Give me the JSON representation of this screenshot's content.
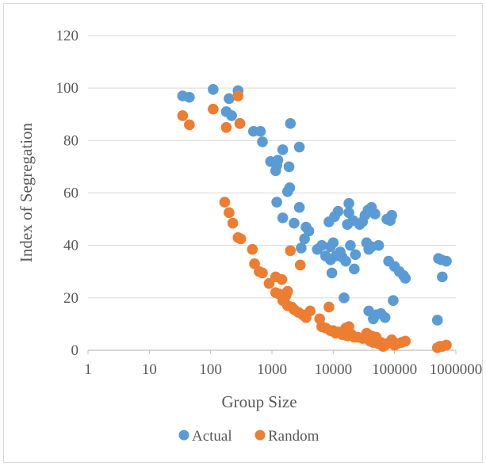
{
  "chart_data": {
    "type": "scatter",
    "title": "",
    "xlabel": "Group Size",
    "ylabel": "Index of Segregation",
    "xscale": "log",
    "xlim": [
      1,
      1000000
    ],
    "ylim": [
      0,
      120
    ],
    "x_tick_labels": [
      "1",
      "10",
      "100",
      "1000",
      "10000",
      "100000",
      "1000000"
    ],
    "y_tick_labels": [
      "0",
      "20",
      "40",
      "60",
      "80",
      "100",
      "120"
    ],
    "grid": "horizontal",
    "legend_position": "bottom",
    "series": [
      {
        "name": "Actual",
        "color": "#5B9BD5",
        "points": [
          [
            35,
            97
          ],
          [
            45,
            96.5
          ],
          [
            110,
            99.5
          ],
          [
            180,
            91
          ],
          [
            200,
            96
          ],
          [
            220,
            89.5
          ],
          [
            280,
            99
          ],
          [
            300,
            86.5
          ],
          [
            500,
            83.5
          ],
          [
            650,
            83.5
          ],
          [
            700,
            79.5
          ],
          [
            950,
            72
          ],
          [
            1150,
            68.5
          ],
          [
            1200,
            70.5
          ],
          [
            1250,
            72.5
          ],
          [
            1500,
            76.5
          ],
          [
            1900,
            70
          ],
          [
            2000,
            86.5
          ],
          [
            1200,
            56.5
          ],
          [
            1500,
            50.5
          ],
          [
            1800,
            60.5
          ],
          [
            1950,
            62
          ],
          [
            2300,
            48.5
          ],
          [
            2800,
            77.5
          ],
          [
            2800,
            54.5
          ],
          [
            3000,
            39
          ],
          [
            3400,
            42.5
          ],
          [
            3600,
            47
          ],
          [
            4000,
            45.5
          ],
          [
            6500,
            40
          ],
          [
            5500,
            38.5
          ],
          [
            7500,
            36
          ],
          [
            8500,
            49
          ],
          [
            9000,
            34.5
          ],
          [
            9000,
            39.5
          ],
          [
            9500,
            29.5
          ],
          [
            10000,
            41
          ],
          [
            10500,
            51
          ],
          [
            11000,
            36
          ],
          [
            12000,
            53
          ],
          [
            13000,
            37.5
          ],
          [
            14000,
            35.5
          ],
          [
            15000,
            20
          ],
          [
            16000,
            34
          ],
          [
            17000,
            48
          ],
          [
            18000,
            56
          ],
          [
            18000,
            52.5
          ],
          [
            19000,
            40
          ],
          [
            21000,
            49.5
          ],
          [
            22000,
            31
          ],
          [
            23000,
            36.5
          ],
          [
            27000,
            48
          ],
          [
            30000,
            49
          ],
          [
            33000,
            51.5
          ],
          [
            35000,
            41
          ],
          [
            37000,
            53.5
          ],
          [
            38000,
            38.5
          ],
          [
            38000,
            15
          ],
          [
            42000,
            54.5
          ],
          [
            42000,
            39.5
          ],
          [
            45000,
            12
          ],
          [
            48000,
            52
          ],
          [
            50000,
            13.5
          ],
          [
            55000,
            40
          ],
          [
            60000,
            14
          ],
          [
            70000,
            12.5
          ],
          [
            75000,
            50
          ],
          [
            80000,
            34
          ],
          [
            85000,
            49.5
          ],
          [
            90000,
            51.5
          ],
          [
            95000,
            19
          ],
          [
            100000,
            32
          ],
          [
            120000,
            30
          ],
          [
            140000,
            28.5
          ],
          [
            150000,
            27.5
          ],
          [
            500000,
            11.5
          ],
          [
            520000,
            35
          ],
          [
            580000,
            34.5
          ],
          [
            600000,
            28
          ],
          [
            700000,
            34
          ]
        ]
      },
      {
        "name": "Random",
        "color": "#ED7D31",
        "points": [
          [
            35,
            89.5
          ],
          [
            45,
            86
          ],
          [
            110,
            92
          ],
          [
            180,
            85
          ],
          [
            280,
            97
          ],
          [
            300,
            86.5
          ],
          [
            170,
            56.5
          ],
          [
            200,
            52.5
          ],
          [
            230,
            48.5
          ],
          [
            280,
            43
          ],
          [
            310,
            42.5
          ],
          [
            480,
            38.5
          ],
          [
            520,
            33
          ],
          [
            620,
            30
          ],
          [
            700,
            29.5
          ],
          [
            900,
            25.5
          ],
          [
            1150,
            28
          ],
          [
            1150,
            22
          ],
          [
            1300,
            21.5
          ],
          [
            1450,
            27
          ],
          [
            1500,
            19
          ],
          [
            1600,
            20
          ],
          [
            1700,
            21
          ],
          [
            1800,
            22.5
          ],
          [
            1800,
            17
          ],
          [
            2000,
            38
          ],
          [
            2100,
            16.5
          ],
          [
            2300,
            15.5
          ],
          [
            2700,
            14.5
          ],
          [
            2900,
            32.5
          ],
          [
            3200,
            13.5
          ],
          [
            3600,
            12.5
          ],
          [
            4200,
            15
          ],
          [
            6000,
            12
          ],
          [
            6500,
            9
          ],
          [
            7500,
            8.5
          ],
          [
            8500,
            16.5
          ],
          [
            9000,
            7.5
          ],
          [
            10000,
            7.5
          ],
          [
            11000,
            6.5
          ],
          [
            12000,
            7
          ],
          [
            14000,
            6
          ],
          [
            16000,
            8.5
          ],
          [
            17000,
            5.5
          ],
          [
            18000,
            9
          ],
          [
            20000,
            6
          ],
          [
            22000,
            5
          ],
          [
            25000,
            5
          ],
          [
            30000,
            4.5
          ],
          [
            35000,
            6.5
          ],
          [
            38000,
            4
          ],
          [
            40000,
            3.5
          ],
          [
            42000,
            5.5
          ],
          [
            45000,
            3
          ],
          [
            50000,
            5
          ],
          [
            55000,
            2.5
          ],
          [
            60000,
            3
          ],
          [
            65000,
            1.5
          ],
          [
            70000,
            2
          ],
          [
            75000,
            2.5
          ],
          [
            85000,
            3
          ],
          [
            90000,
            4
          ],
          [
            100000,
            2
          ],
          [
            110000,
            2.5
          ],
          [
            130000,
            3
          ],
          [
            150000,
            3.5
          ],
          [
            500000,
            1
          ],
          [
            550000,
            1.5
          ],
          [
            600000,
            1.5
          ],
          [
            700000,
            2
          ]
        ]
      }
    ]
  }
}
